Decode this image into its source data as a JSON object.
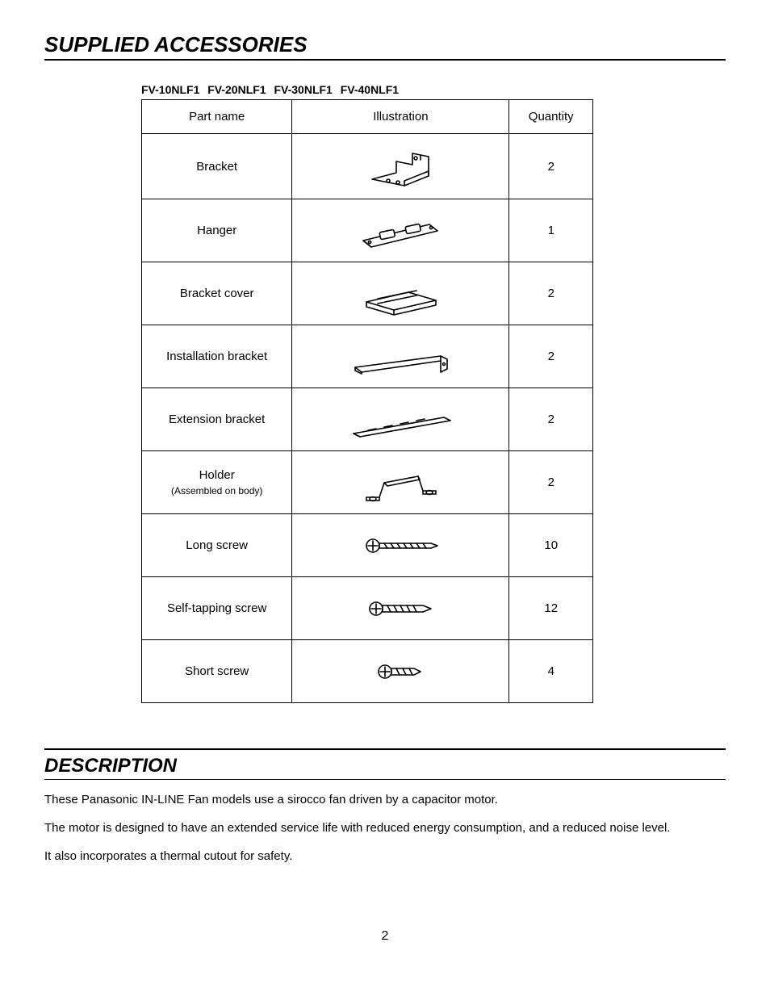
{
  "section1": {
    "title": "SUPPLIED ACCESSORIES",
    "models": "FV-10NLF1  FV-20NLF1  FV-30NLF1  FV-40NLF1",
    "columns": [
      "Part name",
      "Illustration",
      "Quantity"
    ],
    "rows": [
      {
        "name": "Bracket",
        "sub": "",
        "icon": "bracket",
        "qty": "2"
      },
      {
        "name": "Hanger",
        "sub": "",
        "icon": "hanger",
        "qty": "1"
      },
      {
        "name": "Bracket cover",
        "sub": "",
        "icon": "bracketcover",
        "qty": "2"
      },
      {
        "name": "Installation bracket",
        "sub": "",
        "icon": "instbracket",
        "qty": "2"
      },
      {
        "name": "Extension bracket",
        "sub": "",
        "icon": "extbracket",
        "qty": "2"
      },
      {
        "name": "Holder",
        "sub": "(Assembled on body)",
        "icon": "holder",
        "qty": "2"
      },
      {
        "name": "Long screw",
        "sub": "",
        "icon": "longscrew",
        "qty": "10"
      },
      {
        "name": "Self-tapping screw",
        "sub": "",
        "icon": "selftapscrew",
        "qty": "12"
      },
      {
        "name": "Short screw",
        "sub": "",
        "icon": "shortscrew",
        "qty": "4"
      }
    ]
  },
  "section2": {
    "title": "DESCRIPTION",
    "p1": "These Panasonic IN-LINE Fan models use a sirocco fan driven by a capacitor motor.",
    "p2": "The motor is designed to have an extended service life with reduced energy consumption, and a reduced noise level.",
    "p3": "It also incorporates a thermal cutout for safety."
  },
  "page_number": "2",
  "style": {
    "stroke": "#000000",
    "fill": "#ffffff"
  }
}
